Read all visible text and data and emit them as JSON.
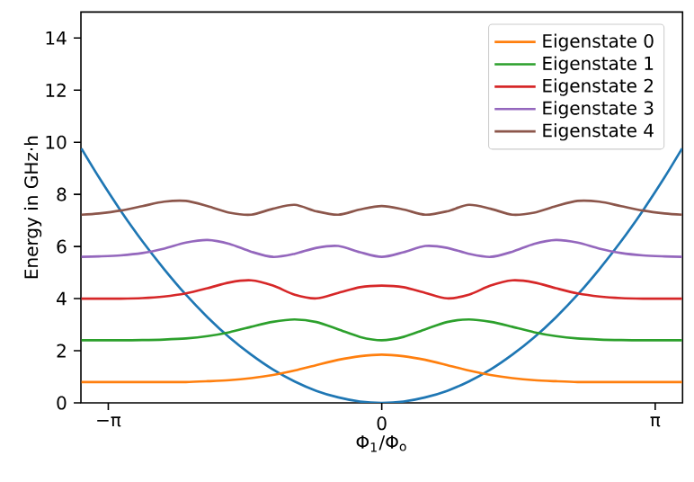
{
  "chart_data": {
    "type": "line",
    "xlabel": "Φ$_{1}$/Φ$_{o}$",
    "ylabel": "Energy in GHz·h",
    "x": [
      -3.45,
      -3.25,
      -3,
      -2.75,
      -2.5,
      -2.25,
      -2,
      -1.75,
      -1.5,
      -1.25,
      -1,
      -0.75,
      -0.5,
      -0.25,
      0,
      0.25,
      0.5,
      0.75,
      1,
      1.25,
      1.5,
      1.75,
      2,
      2.25,
      2.5,
      2.75,
      3,
      3.25,
      3.45
    ],
    "xlim": [
      -3.456,
      3.456
    ],
    "ylim": [
      0,
      15
    ],
    "xticks": [
      {
        "value": -3.14159,
        "label": "−π"
      },
      0,
      {
        "value": 3.14159,
        "label": "π"
      }
    ],
    "yticks": [
      0,
      2,
      4,
      6,
      8,
      10,
      12,
      14
    ],
    "legend": "top right",
    "grid": false,
    "marker": "none",
    "line_style": "solid",
    "series": [
      {
        "color": "#1f77b4",
        "values": [
          9.76,
          8.66,
          7.38,
          6.2,
          5.13,
          4.15,
          3.28,
          2.51,
          1.85,
          1.28,
          0.82,
          0.46,
          0.21,
          0.05,
          0,
          0.05,
          0.21,
          0.46,
          0.82,
          1.28,
          1.85,
          2.51,
          3.28,
          4.15,
          5.13,
          6.2,
          7.38,
          8.66,
          9.76
        ]
      },
      {
        "name": "Eigenstate 0",
        "color": "#ff7f0e",
        "values": [
          0.8,
          0.8,
          0.8,
          0.8,
          0.8,
          0.8,
          0.83,
          0.87,
          0.95,
          1.07,
          1.24,
          1.45,
          1.65,
          1.79,
          1.85,
          1.79,
          1.65,
          1.45,
          1.24,
          1.07,
          0.95,
          0.87,
          0.83,
          0.8,
          0.8,
          0.8,
          0.8,
          0.8,
          0.8
        ]
      },
      {
        "name": "Eigenstate 1",
        "color": "#2ca02c",
        "values": [
          2.4,
          2.4,
          2.4,
          2.41,
          2.43,
          2.47,
          2.56,
          2.71,
          2.92,
          3.11,
          3.2,
          3.1,
          2.82,
          2.53,
          2.4,
          2.53,
          2.82,
          3.1,
          3.2,
          3.11,
          2.92,
          2.71,
          2.56,
          2.47,
          2.43,
          2.41,
          2.4,
          2.4,
          2.4
        ]
      },
      {
        "name": "Eigenstate 2",
        "color": "#d62728",
        "values": [
          4.0,
          4.0,
          4.0,
          4.02,
          4.08,
          4.2,
          4.4,
          4.62,
          4.7,
          4.5,
          4.15,
          4.01,
          4.22,
          4.44,
          4.5,
          4.44,
          4.22,
          4.01,
          4.15,
          4.5,
          4.7,
          4.62,
          4.4,
          4.2,
          4.08,
          4.02,
          4.0,
          4.0,
          4.0
        ]
      },
      {
        "name": "Eigenstate 3",
        "color": "#9467bd",
        "values": [
          5.6,
          5.62,
          5.66,
          5.75,
          5.92,
          6.15,
          6.25,
          6.1,
          5.8,
          5.6,
          5.72,
          5.95,
          6.02,
          5.78,
          5.6,
          5.78,
          6.02,
          5.95,
          5.72,
          5.6,
          5.8,
          6.1,
          6.25,
          6.15,
          5.92,
          5.75,
          5.66,
          5.62,
          5.6
        ]
      },
      {
        "name": "Eigenstate 4",
        "color": "#8c564b",
        "values": [
          7.22,
          7.27,
          7.38,
          7.55,
          7.72,
          7.75,
          7.55,
          7.3,
          7.22,
          7.45,
          7.6,
          7.35,
          7.22,
          7.42,
          7.55,
          7.42,
          7.22,
          7.35,
          7.6,
          7.45,
          7.22,
          7.3,
          7.55,
          7.75,
          7.72,
          7.55,
          7.38,
          7.27,
          7.22
        ]
      }
    ]
  }
}
